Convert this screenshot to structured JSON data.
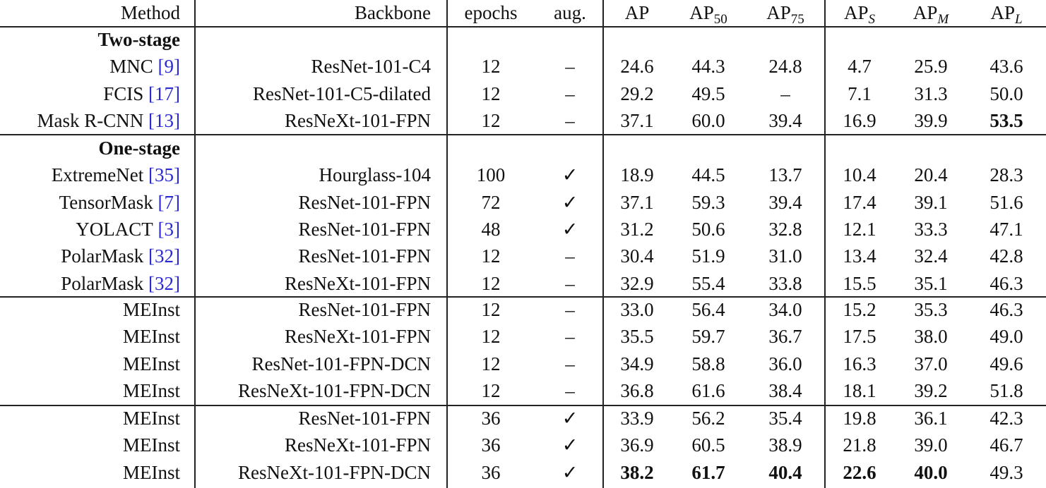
{
  "table": {
    "header": {
      "method": "Method",
      "backbone": "Backbone",
      "epochs": "epochs",
      "aug": "aug.",
      "ap": [
        {
          "main": "AP"
        },
        {
          "main": "AP",
          "sub": "50"
        },
        {
          "main": "AP",
          "sub": "75"
        },
        {
          "main": "AP",
          "sub": "S"
        },
        {
          "main": "AP",
          "sub": "M"
        },
        {
          "main": "AP",
          "sub": "L"
        }
      ]
    },
    "sections": [
      {
        "title": "Two-stage",
        "rows": [
          {
            "method": "MNC",
            "ref": "[9]",
            "backbone": "ResNet-101-C4",
            "epochs": "12",
            "aug": "–",
            "ap": [
              "24.6",
              "44.3",
              "24.8",
              "4.7",
              "25.9",
              "43.6"
            ]
          },
          {
            "method": "FCIS",
            "ref": "[17]",
            "backbone": "ResNet-101-C5-dilated",
            "epochs": "12",
            "aug": "–",
            "ap": [
              "29.2",
              "49.5",
              "–",
              "7.1",
              "31.3",
              "50.0"
            ]
          },
          {
            "method": "Mask R-CNN",
            "ref": "[13]",
            "backbone": "ResNeXt-101-FPN",
            "epochs": "12",
            "aug": "–",
            "ap": [
              "37.1",
              "60.0",
              "39.4",
              "16.9",
              "39.9",
              "53.5"
            ],
            "bold": [
              5
            ]
          }
        ]
      },
      {
        "title": "One-stage",
        "rows": [
          {
            "method": "ExtremeNet",
            "ref": "[35]",
            "backbone": "Hourglass-104",
            "epochs": "100",
            "aug": "✓",
            "ap": [
              "18.9",
              "44.5",
              "13.7",
              "10.4",
              "20.4",
              "28.3"
            ]
          },
          {
            "method": "TensorMask",
            "ref": "[7]",
            "backbone": "ResNet-101-FPN",
            "epochs": "72",
            "aug": "✓",
            "ap": [
              "37.1",
              "59.3",
              "39.4",
              "17.4",
              "39.1",
              "51.6"
            ]
          },
          {
            "method": "YOLACT",
            "ref": "[3]",
            "backbone": "ResNet-101-FPN",
            "epochs": "48",
            "aug": "✓",
            "ap": [
              "31.2",
              "50.6",
              "32.8",
              "12.1",
              "33.3",
              "47.1"
            ]
          },
          {
            "method": "PolarMask",
            "ref": "[32]",
            "backbone": "ResNet-101-FPN",
            "epochs": "12",
            "aug": "–",
            "ap": [
              "30.4",
              "51.9",
              "31.0",
              "13.4",
              "32.4",
              "42.8"
            ]
          },
          {
            "method": "PolarMask",
            "ref": "[32]",
            "backbone": "ResNeXt-101-FPN",
            "epochs": "12",
            "aug": "–",
            "ap": [
              "32.9",
              "55.4",
              "33.8",
              "15.5",
              "35.1",
              "46.3"
            ]
          }
        ]
      },
      {
        "rows": [
          {
            "method": "MEInst",
            "backbone": "ResNet-101-FPN",
            "epochs": "12",
            "aug": "–",
            "ap": [
              "33.0",
              "56.4",
              "34.0",
              "15.2",
              "35.3",
              "46.3"
            ]
          },
          {
            "method": "MEInst",
            "backbone": "ResNeXt-101-FPN",
            "epochs": "12",
            "aug": "–",
            "ap": [
              "35.5",
              "59.7",
              "36.7",
              "17.5",
              "38.0",
              "49.0"
            ]
          },
          {
            "method": "MEInst",
            "backbone": "ResNet-101-FPN-DCN",
            "epochs": "12",
            "aug": "–",
            "ap": [
              "34.9",
              "58.8",
              "36.0",
              "16.3",
              "37.0",
              "49.6"
            ]
          },
          {
            "method": "MEInst",
            "backbone": "ResNeXt-101-FPN-DCN",
            "epochs": "12",
            "aug": "–",
            "ap": [
              "36.8",
              "61.6",
              "38.4",
              "18.1",
              "39.2",
              "51.8"
            ]
          }
        ]
      },
      {
        "rows": [
          {
            "method": "MEInst",
            "backbone": "ResNet-101-FPN",
            "epochs": "36",
            "aug": "✓",
            "ap": [
              "33.9",
              "56.2",
              "35.4",
              "19.8",
              "36.1",
              "42.3"
            ]
          },
          {
            "method": "MEInst",
            "backbone": "ResNeXt-101-FPN",
            "epochs": "36",
            "aug": "✓",
            "ap": [
              "36.9",
              "60.5",
              "38.9",
              "21.8",
              "39.0",
              "46.7"
            ]
          },
          {
            "method": "MEInst",
            "backbone": "ResNeXt-101-FPN-DCN",
            "epochs": "36",
            "aug": "✓",
            "ap": [
              "38.2",
              "61.7",
              "40.4",
              "22.6",
              "40.0",
              "49.3"
            ],
            "bold": [
              0,
              1,
              2,
              3,
              4
            ]
          }
        ]
      }
    ]
  }
}
